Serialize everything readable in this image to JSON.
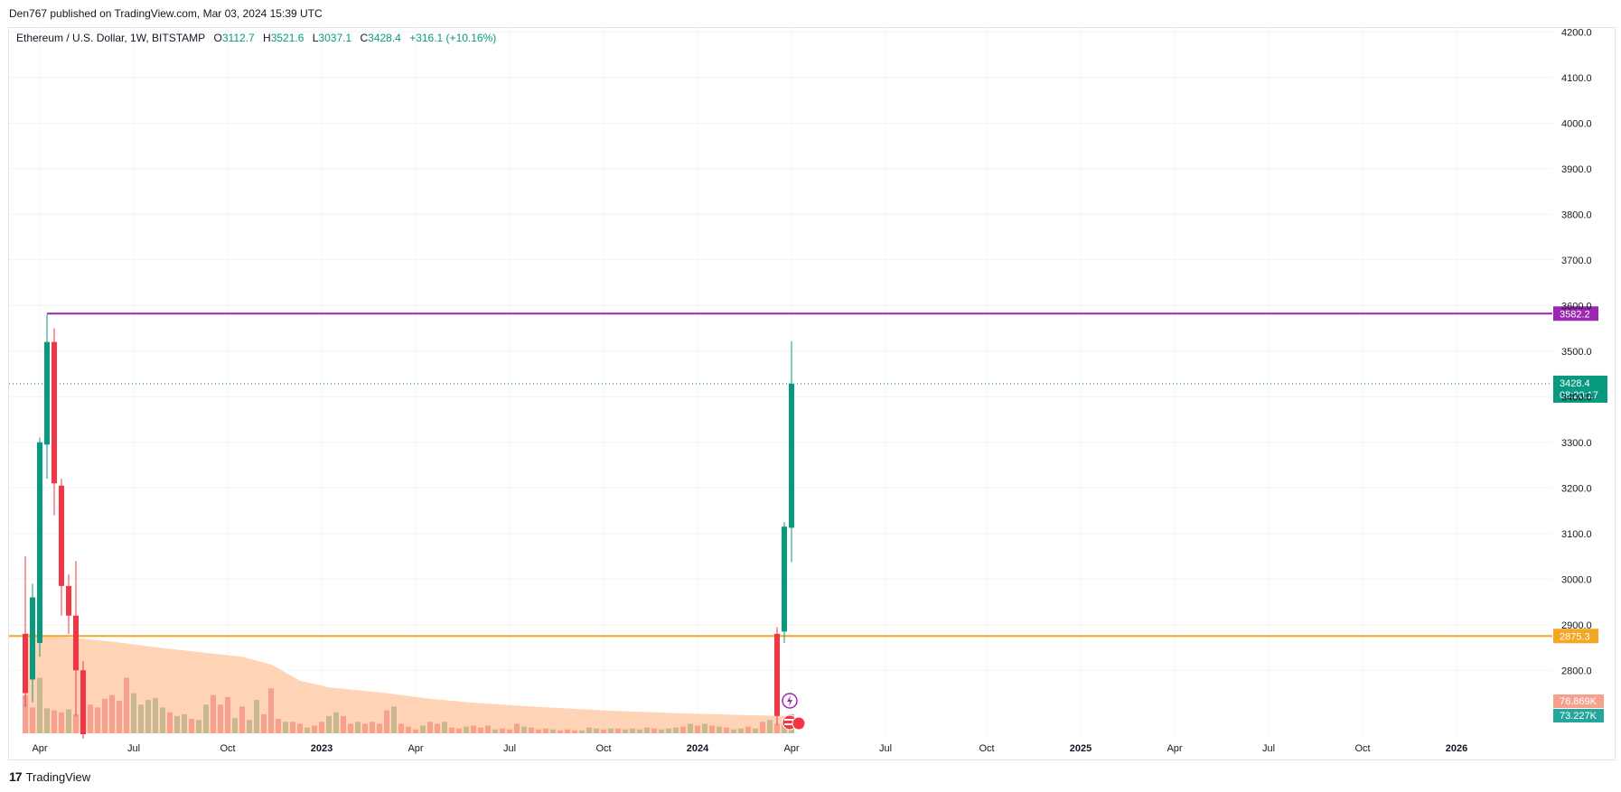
{
  "publisher": "Den767 published on TradingView.com, Mar 03, 2024 15:39 UTC",
  "legend": {
    "symbol": "Ethereum / U.S. Dollar, 1W, BITSTAMP",
    "o_label": "O",
    "o": "3112.7",
    "h_label": "H",
    "h": "3521.6",
    "l_label": "L",
    "l": "3037.1",
    "c_label": "C",
    "c": "3428.4",
    "change": "+316.1 (+10.16%)"
  },
  "brand": {
    "logo": "17",
    "name": "TradingView"
  },
  "colors": {
    "up": "#089981",
    "down": "#f23645",
    "vol_up": "#c8b891",
    "vol_down": "#f7a08e",
    "vol_ma": "#ffcba8",
    "resistance": "#9c27b0",
    "support": "#f5a623",
    "price_line": "#089981"
  },
  "chart_data": {
    "type": "candlestick",
    "ylim": [
      2660,
      4250
    ],
    "y_ticks": [
      2800,
      2900,
      3000,
      3100,
      3200,
      3300,
      3400,
      3500,
      3600,
      3700,
      3800,
      3900,
      4000,
      4100,
      4200
    ],
    "y_tick_labels": [
      "2800.0",
      "2900.0",
      "3000.0",
      "3100.0",
      "3200.0",
      "3300.0",
      "3400.0",
      "3500.0",
      "3600.0",
      "3700.0",
      "3800.0",
      "3900.0",
      "4000.0",
      "4100.0",
      "4200.0"
    ],
    "x_ticks": [
      "Apr",
      "Jul",
      "Oct",
      "2023",
      "Apr",
      "Jul",
      "Oct",
      "2024",
      "Apr",
      "Jul",
      "Oct",
      "2025",
      "Apr",
      "Jul",
      "Oct",
      "2026"
    ],
    "x_tick_weeks": [
      2,
      15,
      28,
      41,
      54,
      67,
      80,
      93,
      106,
      119,
      133,
      146,
      159,
      172,
      185,
      198
    ],
    "candles": [
      {
        "w": 0,
        "o": 2880,
        "h": 3050,
        "l": 2720,
        "c": 2750
      },
      {
        "w": 1,
        "o": 2780,
        "h": 2990,
        "l": 2730,
        "c": 2960
      },
      {
        "w": 2,
        "o": 2860,
        "h": 3310,
        "l": 2830,
        "c": 3300
      },
      {
        "w": 3,
        "o": 3295,
        "h": 3580,
        "l": 3220,
        "c": 3520
      },
      {
        "w": 4,
        "o": 3520,
        "h": 3550,
        "l": 3140,
        "c": 3210
      },
      {
        "w": 5,
        "o": 3205,
        "h": 3220,
        "l": 2920,
        "c": 2985
      },
      {
        "w": 6,
        "o": 2985,
        "h": 3010,
        "l": 2880,
        "c": 2920
      },
      {
        "w": 7,
        "o": 2920,
        "h": 3040,
        "l": 2700,
        "c": 2800
      },
      {
        "w": 8,
        "o": 2800,
        "h": 2820,
        "l": 2650,
        "c": 2660
      },
      {
        "w": 104,
        "o": 2880,
        "h": 2895,
        "l": 2680,
        "c": 2700
      },
      {
        "w": 105,
        "o": 2885,
        "h": 3125,
        "l": 2860,
        "c": 3115
      },
      {
        "w": 106,
        "o": 3112.7,
        "h": 3521.6,
        "l": 3037.1,
        "c": 3428.4
      }
    ],
    "volume": {
      "max_value": 170,
      "bars": [
        {
          "w": 0,
          "v": 40,
          "up": false
        },
        {
          "w": 1,
          "v": 27,
          "up": false
        },
        {
          "w": 2,
          "v": 58,
          "up": true
        },
        {
          "w": 3,
          "v": 26,
          "up": true
        },
        {
          "w": 4,
          "v": 24,
          "up": false
        },
        {
          "w": 5,
          "v": 22,
          "up": false
        },
        {
          "w": 6,
          "v": 25,
          "up": true
        },
        {
          "w": 7,
          "v": 20,
          "up": false
        },
        {
          "w": 8,
          "v": 35,
          "up": false
        },
        {
          "w": 9,
          "v": 30,
          "up": false
        },
        {
          "w": 10,
          "v": 27,
          "up": false
        },
        {
          "w": 11,
          "v": 36,
          "up": false
        },
        {
          "w": 12,
          "v": 40,
          "up": false
        },
        {
          "w": 13,
          "v": 34,
          "up": false
        },
        {
          "w": 14,
          "v": 58,
          "up": false
        },
        {
          "w": 15,
          "v": 42,
          "up": true
        },
        {
          "w": 16,
          "v": 30,
          "up": true
        },
        {
          "w": 17,
          "v": 35,
          "up": true
        },
        {
          "w": 18,
          "v": 37,
          "up": true
        },
        {
          "w": 19,
          "v": 27,
          "up": true
        },
        {
          "w": 20,
          "v": 22,
          "up": false
        },
        {
          "w": 21,
          "v": 18,
          "up": true
        },
        {
          "w": 22,
          "v": 20,
          "up": true
        },
        {
          "w": 23,
          "v": 15,
          "up": false
        },
        {
          "w": 24,
          "v": 14,
          "up": true
        },
        {
          "w": 25,
          "v": 30,
          "up": true
        },
        {
          "w": 26,
          "v": 40,
          "up": false
        },
        {
          "w": 27,
          "v": 30,
          "up": false
        },
        {
          "w": 28,
          "v": 38,
          "up": false
        },
        {
          "w": 29,
          "v": 16,
          "up": true
        },
        {
          "w": 30,
          "v": 28,
          "up": false
        },
        {
          "w": 31,
          "v": 14,
          "up": true
        },
        {
          "w": 32,
          "v": 35,
          "up": true
        },
        {
          "w": 33,
          "v": 20,
          "up": false
        },
        {
          "w": 34,
          "v": 47,
          "up": false
        },
        {
          "w": 35,
          "v": 15,
          "up": false
        },
        {
          "w": 36,
          "v": 12,
          "up": true
        },
        {
          "w": 37,
          "v": 12,
          "up": false
        },
        {
          "w": 38,
          "v": 10,
          "up": false
        },
        {
          "w": 39,
          "v": 6,
          "up": true
        },
        {
          "w": 40,
          "v": 8,
          "up": false
        },
        {
          "w": 41,
          "v": 12,
          "up": false
        },
        {
          "w": 42,
          "v": 18,
          "up": true
        },
        {
          "w": 43,
          "v": 22,
          "up": true
        },
        {
          "w": 44,
          "v": 18,
          "up": false
        },
        {
          "w": 45,
          "v": 10,
          "up": false
        },
        {
          "w": 46,
          "v": 12,
          "up": true
        },
        {
          "w": 47,
          "v": 10,
          "up": false
        },
        {
          "w": 48,
          "v": 12,
          "up": false
        },
        {
          "w": 49,
          "v": 10,
          "up": false
        },
        {
          "w": 50,
          "v": 24,
          "up": false
        },
        {
          "w": 51,
          "v": 28,
          "up": true
        },
        {
          "w": 52,
          "v": 10,
          "up": false
        },
        {
          "w": 53,
          "v": 7,
          "up": false
        },
        {
          "w": 54,
          "v": 4,
          "up": false
        },
        {
          "w": 55,
          "v": 8,
          "up": true
        },
        {
          "w": 56,
          "v": 12,
          "up": false
        },
        {
          "w": 57,
          "v": 10,
          "up": false
        },
        {
          "w": 58,
          "v": 12,
          "up": true
        },
        {
          "w": 59,
          "v": 6,
          "up": false
        },
        {
          "w": 60,
          "v": 5,
          "up": false
        },
        {
          "w": 61,
          "v": 7,
          "up": true
        },
        {
          "w": 62,
          "v": 8,
          "up": false
        },
        {
          "w": 63,
          "v": 6,
          "up": false
        },
        {
          "w": 64,
          "v": 8,
          "up": false
        },
        {
          "w": 65,
          "v": 4,
          "up": true
        },
        {
          "w": 66,
          "v": 5,
          "up": false
        },
        {
          "w": 67,
          "v": 4,
          "up": false
        },
        {
          "w": 68,
          "v": 10,
          "up": false
        },
        {
          "w": 69,
          "v": 7,
          "up": true
        },
        {
          "w": 70,
          "v": 6,
          "up": false
        },
        {
          "w": 71,
          "v": 4,
          "up": false
        },
        {
          "w": 72,
          "v": 5,
          "up": false
        },
        {
          "w": 73,
          "v": 4,
          "up": true
        },
        {
          "w": 74,
          "v": 3,
          "up": false
        },
        {
          "w": 75,
          "v": 4,
          "up": false
        },
        {
          "w": 76,
          "v": 3,
          "up": false
        },
        {
          "w": 77,
          "v": 3,
          "up": true
        },
        {
          "w": 78,
          "v": 6,
          "up": true
        },
        {
          "w": 79,
          "v": 5,
          "up": true
        },
        {
          "w": 80,
          "v": 4,
          "up": false
        },
        {
          "w": 81,
          "v": 5,
          "up": true
        },
        {
          "w": 82,
          "v": 5,
          "up": false
        },
        {
          "w": 83,
          "v": 4,
          "up": true
        },
        {
          "w": 84,
          "v": 5,
          "up": true
        },
        {
          "w": 85,
          "v": 4,
          "up": true
        },
        {
          "w": 86,
          "v": 6,
          "up": true
        },
        {
          "w": 87,
          "v": 5,
          "up": false
        },
        {
          "w": 88,
          "v": 4,
          "up": true
        },
        {
          "w": 89,
          "v": 5,
          "up": true
        },
        {
          "w": 90,
          "v": 6,
          "up": true
        },
        {
          "w": 91,
          "v": 7,
          "up": false
        },
        {
          "w": 92,
          "v": 10,
          "up": true
        },
        {
          "w": 93,
          "v": 8,
          "up": false
        },
        {
          "w": 94,
          "v": 10,
          "up": true
        },
        {
          "w": 95,
          "v": 8,
          "up": false
        },
        {
          "w": 96,
          "v": 7,
          "up": true
        },
        {
          "w": 97,
          "v": 6,
          "up": false
        },
        {
          "w": 98,
          "v": 4,
          "up": true
        },
        {
          "w": 99,
          "v": 5,
          "up": true
        },
        {
          "w": 100,
          "v": 7,
          "up": false
        },
        {
          "w": 101,
          "v": 5,
          "up": true
        },
        {
          "w": 102,
          "v": 12,
          "up": false
        },
        {
          "w": 103,
          "v": 14,
          "up": true
        },
        {
          "w": 104,
          "v": 10,
          "up": false
        },
        {
          "w": 105,
          "v": 12,
          "up": true
        },
        {
          "w": 106,
          "v": 20,
          "up": true
        }
      ],
      "ma": [
        {
          "w": 0,
          "v": 105
        },
        {
          "w": 6,
          "v": 100
        },
        {
          "w": 12,
          "v": 96
        },
        {
          "w": 18,
          "v": 90
        },
        {
          "w": 24,
          "v": 85
        },
        {
          "w": 30,
          "v": 80
        },
        {
          "w": 34,
          "v": 72
        },
        {
          "w": 38,
          "v": 55
        },
        {
          "w": 42,
          "v": 48
        },
        {
          "w": 50,
          "v": 42
        },
        {
          "w": 56,
          "v": 36
        },
        {
          "w": 62,
          "v": 32
        },
        {
          "w": 70,
          "v": 28
        },
        {
          "w": 80,
          "v": 24
        },
        {
          "w": 90,
          "v": 21
        },
        {
          "w": 100,
          "v": 19
        },
        {
          "w": 106,
          "v": 18
        }
      ]
    },
    "horizontal_lines": [
      {
        "price": 3582.2,
        "label": "3582.2",
        "color": "#9c27b0"
      },
      {
        "price": 2875.3,
        "label": "2875.3",
        "color": "#f5a623"
      }
    ],
    "price_tag": {
      "price": 3428.4,
      "label": "3428.4",
      "countdown": "08:20:17"
    },
    "volume_tags": [
      {
        "label": "76.869K",
        "color": "#f7a08e"
      },
      {
        "label": "73.227K",
        "color": "#26a69a"
      }
    ]
  }
}
